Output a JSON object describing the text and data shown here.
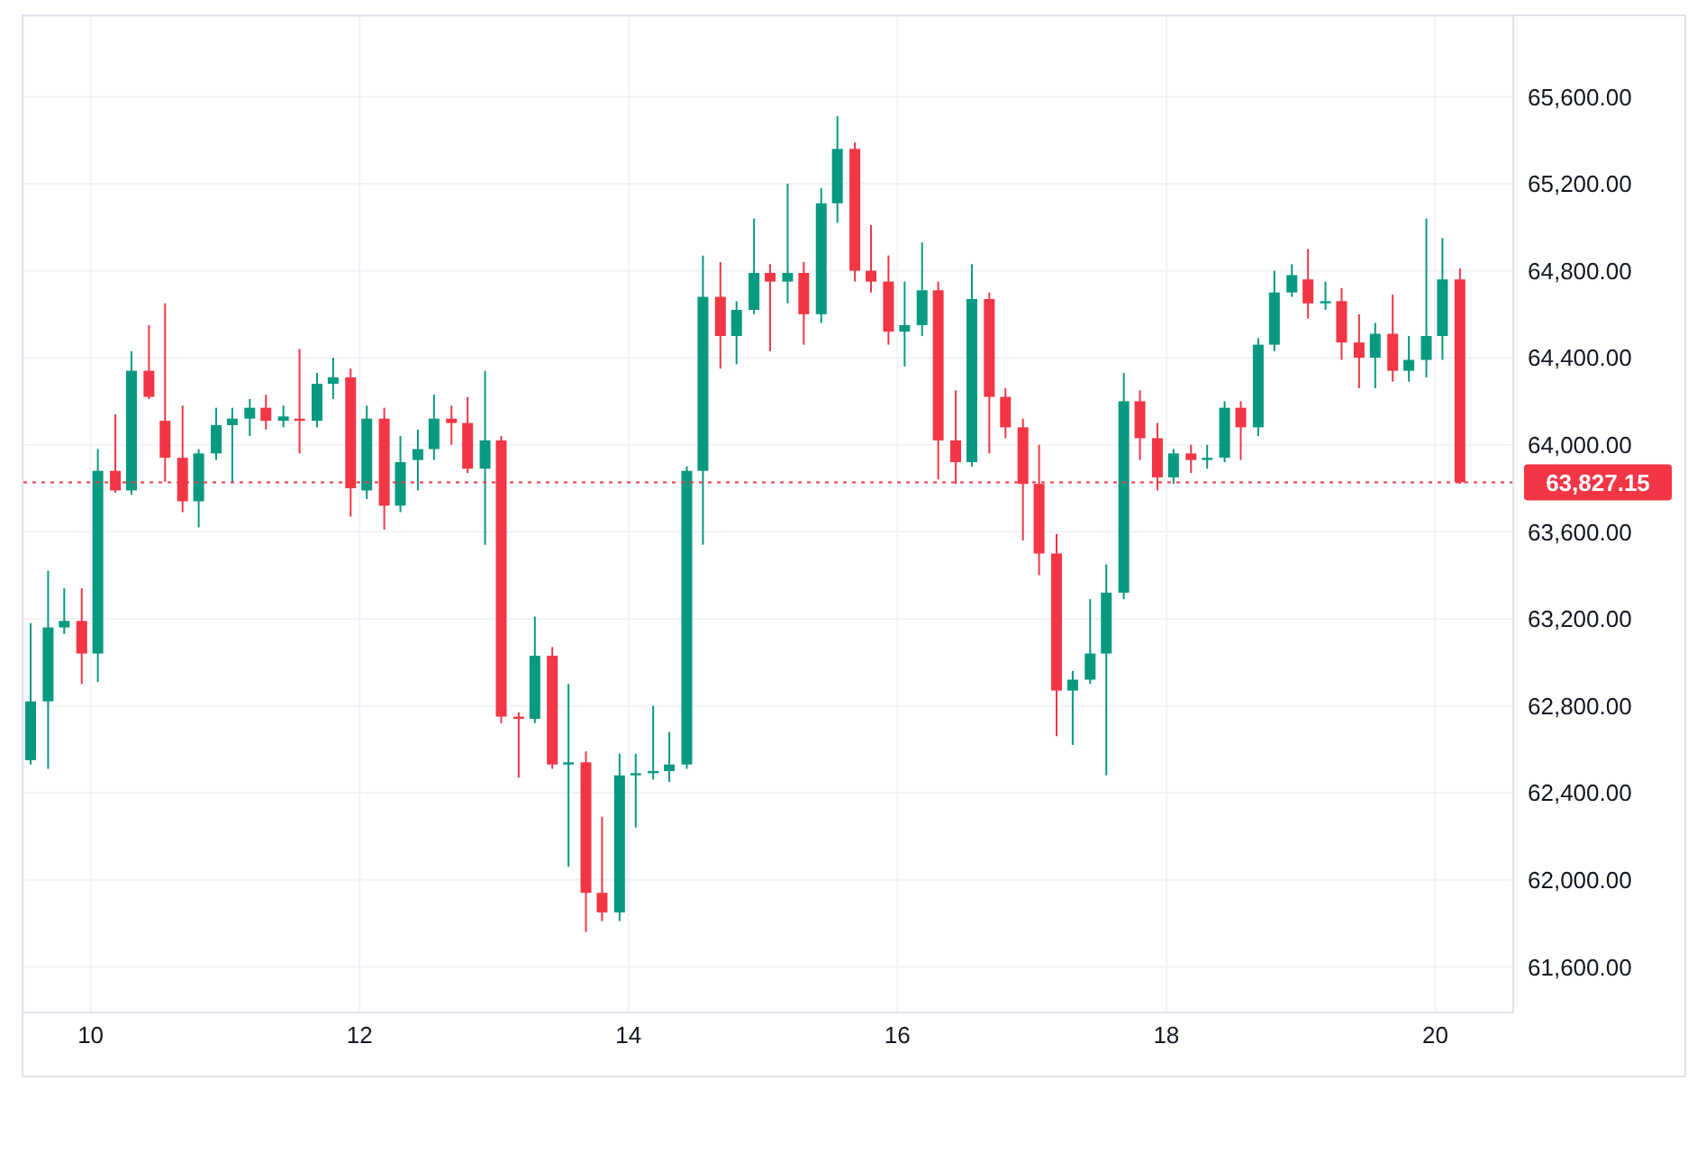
{
  "chart_data": {
    "type": "candlestick",
    "x": [
      9.56,
      9.69,
      9.81,
      9.94,
      10.06,
      10.19,
      10.31,
      10.44,
      10.56,
      10.69,
      10.81,
      10.94,
      11.06,
      11.19,
      11.31,
      11.44,
      11.56,
      11.69,
      11.81,
      11.94,
      12.06,
      12.19,
      12.31,
      12.44,
      12.56,
      12.69,
      12.81,
      12.94,
      13.06,
      13.19,
      13.31,
      13.44,
      13.56,
      13.69,
      13.81,
      13.94,
      14.06,
      14.19,
      14.31,
      14.44,
      14.56,
      14.69,
      14.81,
      14.94,
      15.06,
      15.19,
      15.31,
      15.44,
      15.56,
      15.69,
      15.81,
      15.94,
      16.06,
      16.19,
      16.31,
      16.44,
      16.56,
      16.69,
      16.81,
      16.94,
      17.06,
      17.19,
      17.31,
      17.44,
      17.56,
      17.69,
      17.81,
      17.94,
      18.06,
      18.19,
      18.31,
      18.44,
      18.56,
      18.69,
      18.81,
      18.94,
      19.06,
      19.19,
      19.31,
      19.44,
      19.56,
      19.69,
      19.81,
      19.94,
      20.06,
      20.19
    ],
    "ohlc": [
      [
        62550,
        63180,
        62530,
        62820
      ],
      [
        62820,
        63420,
        62510,
        63160
      ],
      [
        63160,
        63340,
        63130,
        63190
      ],
      [
        63190,
        63340,
        62900,
        63040
      ],
      [
        63040,
        63980,
        62910,
        63880
      ],
      [
        63880,
        64140,
        63780,
        63790
      ],
      [
        63790,
        64430,
        63770,
        64340
      ],
      [
        64340,
        64550,
        64210,
        64220
      ],
      [
        64110,
        64650,
        63830,
        63940
      ],
      [
        63940,
        64180,
        63690,
        63740
      ],
      [
        63740,
        63980,
        63620,
        63960
      ],
      [
        63960,
        64170,
        63930,
        64090
      ],
      [
        64090,
        64170,
        63830,
        64120
      ],
      [
        64120,
        64210,
        64040,
        64170
      ],
      [
        64170,
        64230,
        64070,
        64110
      ],
      [
        64110,
        64180,
        64080,
        64130
      ],
      [
        64120,
        64440,
        63960,
        64110
      ],
      [
        64110,
        64330,
        64080,
        64280
      ],
      [
        64280,
        64400,
        64210,
        64310
      ],
      [
        64310,
        64350,
        63670,
        63800
      ],
      [
        63790,
        64180,
        63750,
        64120
      ],
      [
        64120,
        64170,
        63610,
        63720
      ],
      [
        63720,
        64040,
        63690,
        63920
      ],
      [
        63930,
        64070,
        63790,
        63980
      ],
      [
        63980,
        64230,
        63930,
        64120
      ],
      [
        64120,
        64180,
        64000,
        64100
      ],
      [
        64100,
        64220,
        63870,
        63890
      ],
      [
        63890,
        64340,
        63540,
        64020
      ],
      [
        64020,
        64040,
        62720,
        62750
      ],
      [
        62750,
        62770,
        62470,
        62740
      ],
      [
        62740,
        63210,
        62720,
        63030
      ],
      [
        63030,
        63070,
        62510,
        62530
      ],
      [
        62530,
        62900,
        62060,
        62540
      ],
      [
        62540,
        62590,
        61760,
        61940
      ],
      [
        61940,
        62290,
        61810,
        61850
      ],
      [
        61850,
        62580,
        61810,
        62480
      ],
      [
        62480,
        62580,
        62240,
        62490
      ],
      [
        62490,
        62800,
        62460,
        62500
      ],
      [
        62500,
        62680,
        62450,
        62530
      ],
      [
        62530,
        63900,
        62510,
        63880
      ],
      [
        63880,
        64870,
        63540,
        64680
      ],
      [
        64680,
        64840,
        64350,
        64500
      ],
      [
        64500,
        64660,
        64370,
        64620
      ],
      [
        64620,
        65040,
        64600,
        64790
      ],
      [
        64790,
        64830,
        64430,
        64750
      ],
      [
        64750,
        65200,
        64650,
        64790
      ],
      [
        64790,
        64840,
        64460,
        64600
      ],
      [
        64600,
        65180,
        64560,
        65110
      ],
      [
        65110,
        65510,
        65020,
        65360
      ],
      [
        65360,
        65390,
        64750,
        64800
      ],
      [
        64800,
        65010,
        64700,
        64750
      ],
      [
        64750,
        64870,
        64460,
        64520
      ],
      [
        64520,
        64750,
        64360,
        64550
      ],
      [
        64550,
        64930,
        64500,
        64710
      ],
      [
        64710,
        64750,
        63840,
        64020
      ],
      [
        64020,
        64250,
        63820,
        63920
      ],
      [
        63920,
        64830,
        63900,
        64670
      ],
      [
        64670,
        64700,
        63960,
        64220
      ],
      [
        64220,
        64260,
        64030,
        64080
      ],
      [
        64080,
        64120,
        63560,
        63820
      ],
      [
        63820,
        64000,
        63400,
        63500
      ],
      [
        63500,
        63590,
        62660,
        62870
      ],
      [
        62870,
        62960,
        62620,
        62920
      ],
      [
        62920,
        63290,
        62900,
        63040
      ],
      [
        63040,
        63450,
        62480,
        63320
      ],
      [
        63320,
        64330,
        63290,
        64200
      ],
      [
        64200,
        64250,
        63930,
        64030
      ],
      [
        64030,
        64100,
        63790,
        63850
      ],
      [
        63850,
        63980,
        63820,
        63960
      ],
      [
        63960,
        64000,
        63870,
        63930
      ],
      [
        63930,
        64000,
        63890,
        63940
      ],
      [
        63940,
        64200,
        63920,
        64170
      ],
      [
        64170,
        64200,
        63930,
        64080
      ],
      [
        64080,
        64490,
        64040,
        64460
      ],
      [
        64460,
        64800,
        64430,
        64700
      ],
      [
        64700,
        64830,
        64680,
        64780
      ],
      [
        64760,
        64900,
        64580,
        64650
      ],
      [
        64650,
        64750,
        64620,
        64660
      ],
      [
        64660,
        64720,
        64390,
        64470
      ],
      [
        64470,
        64600,
        64260,
        64400
      ],
      [
        64400,
        64560,
        64260,
        64510
      ],
      [
        64510,
        64690,
        64290,
        64340
      ],
      [
        64340,
        64500,
        64290,
        64390
      ],
      [
        64390,
        65040,
        64310,
        64500
      ],
      [
        64500,
        64950,
        64390,
        64760
      ],
      [
        64760,
        64810,
        63820,
        63827.15
      ]
    ],
    "colors": [
      "#089981",
      "#089981",
      "#089981",
      "#f23645",
      "#089981",
      "#f23645",
      "#089981",
      "#f23645",
      "#f23645",
      "#f23645",
      "#089981",
      "#089981",
      "#089981",
      "#089981",
      "#f23645",
      "#089981",
      "#f23645",
      "#089981",
      "#089981",
      "#f23645",
      "#089981",
      "#f23645",
      "#089981",
      "#089981",
      "#089981",
      "#f23645",
      "#f23645",
      "#089981",
      "#f23645",
      "#f23645",
      "#089981",
      "#f23645",
      "#089981",
      "#f23645",
      "#f23645",
      "#089981",
      "#089981",
      "#089981",
      "#089981",
      "#089981",
      "#089981",
      "#f23645",
      "#089981",
      "#089981",
      "#f23645",
      "#089981",
      "#f23645",
      "#089981",
      "#089981",
      "#f23645",
      "#f23645",
      "#f23645",
      "#089981",
      "#089981",
      "#f23645",
      "#f23645",
      "#089981",
      "#f23645",
      "#f23645",
      "#f23645",
      "#f23645",
      "#f23645",
      "#089981",
      "#089981",
      "#089981",
      "#089981",
      "#f23645",
      "#f23645",
      "#089981",
      "#f23645",
      "#089981",
      "#089981",
      "#f23645",
      "#089981",
      "#089981",
      "#089981",
      "#f23645",
      "#089981",
      "#f23645",
      "#f23645",
      "#089981",
      "#f23645",
      "#089981",
      "#089981",
      "#089981",
      "#f23645"
    ],
    "xlim": [
      9.5,
      20.58
    ],
    "xticks": [
      10,
      12,
      14,
      16,
      18,
      20
    ],
    "ylim": [
      61390,
      65970
    ],
    "yticks": [
      {
        "value": 61600,
        "label": "61,600.00"
      },
      {
        "value": 62000,
        "label": "62,000.00"
      },
      {
        "value": 62400,
        "label": "62,400.00"
      },
      {
        "value": 62800,
        "label": "62,800.00"
      },
      {
        "value": 63200,
        "label": "63,200.00"
      },
      {
        "value": 63600,
        "label": "63,600.00"
      },
      {
        "value": 64000,
        "label": "64,000.00"
      },
      {
        "value": 64400,
        "label": "64,400.00"
      },
      {
        "value": 64800,
        "label": "64,800.00"
      },
      {
        "value": 65200,
        "label": "65,200.00"
      },
      {
        "value": 65600,
        "label": "65,600.00"
      }
    ],
    "grid": true,
    "ref_lines": [
      {
        "axis": "y",
        "value": 63827.15,
        "label": "63,827.15",
        "color": "#f23645",
        "line_style": "dotted"
      }
    ]
  }
}
